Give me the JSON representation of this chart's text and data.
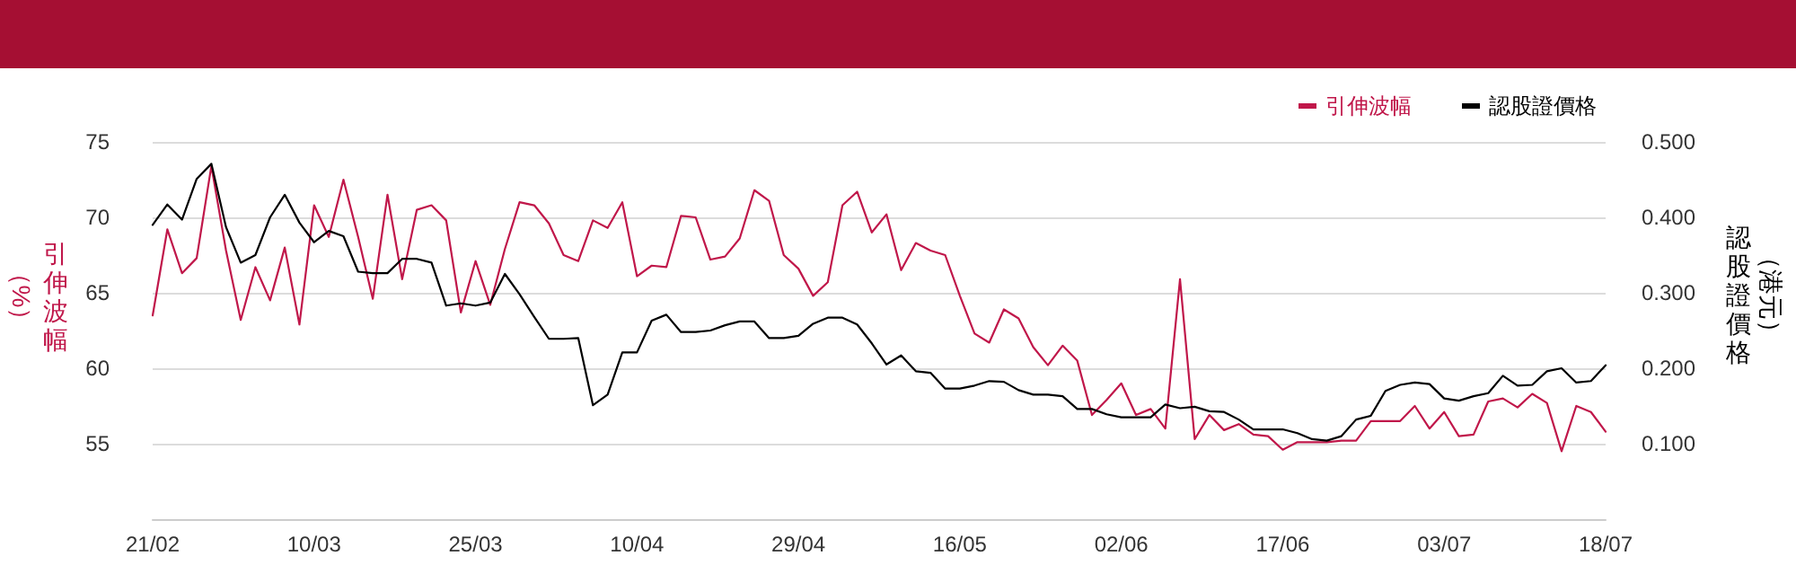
{
  "chart_data": {
    "type": "line",
    "ylabel": "引伸波幅（%）",
    "y2label": "認股證價格（港元）",
    "categories": [
      "21/02",
      null,
      null,
      null,
      null,
      null,
      null,
      null,
      null,
      null,
      null,
      "10/03",
      null,
      null,
      null,
      null,
      null,
      null,
      null,
      null,
      null,
      null,
      "25/03",
      null,
      null,
      null,
      null,
      null,
      null,
      null,
      null,
      null,
      null,
      "10/04",
      null,
      null,
      null,
      null,
      null,
      null,
      null,
      null,
      null,
      null,
      "29/04",
      null,
      null,
      null,
      null,
      null,
      null,
      null,
      null,
      null,
      null,
      "16/05",
      null,
      null,
      null,
      null,
      null,
      null,
      null,
      null,
      null,
      null,
      "02/06",
      null,
      null,
      null,
      null,
      null,
      null,
      null,
      null,
      null,
      null,
      "17/06",
      null,
      null,
      null,
      null,
      null,
      null,
      null,
      null,
      null,
      null,
      "03/07",
      null,
      null,
      null,
      null,
      null,
      null,
      null,
      null,
      null,
      null,
      "18/07"
    ],
    "series": [
      {
        "name": "引伸波幅",
        "color": "#c0174a",
        "values": [
          63.5,
          69.2,
          66.3,
          67.3,
          73.4,
          67.8,
          63.2,
          66.7,
          64.5,
          68.0,
          62.9,
          70.8,
          68.7,
          72.5,
          68.7,
          64.6,
          71.5,
          65.9,
          70.5,
          70.8,
          69.8,
          63.7,
          67.1,
          64.2,
          67.9,
          71.0,
          70.8,
          69.6,
          67.5,
          67.1,
          69.8,
          69.3,
          71.0,
          66.1,
          66.8,
          66.7,
          70.1,
          70.0,
          67.2,
          67.4,
          68.6,
          71.8,
          71.1,
          67.5,
          66.6,
          64.8,
          65.7,
          70.8,
          71.7,
          69.0,
          70.2,
          66.5,
          68.3,
          67.8,
          67.5,
          64.8,
          62.3,
          61.7,
          63.9,
          63.3,
          61.4,
          60.2,
          61.5,
          60.5,
          56.9,
          57.9,
          59.0,
          56.9,
          57.3,
          56.0,
          65.9,
          55.3,
          56.9,
          55.9,
          56.3,
          55.6,
          55.5,
          54.6,
          55.1,
          55.1,
          55.1,
          55.2,
          55.2,
          56.5,
          56.5,
          56.5,
          57.5,
          56.0,
          57.1,
          55.5,
          55.6,
          57.8,
          58.0,
          57.4,
          58.3,
          57.7,
          54.5,
          57.5,
          57.1,
          55.8
        ]
      },
      {
        "name": "認股證價格",
        "color": "#000000",
        "axis": "y2",
        "values": [
          0.39,
          0.417,
          0.397,
          0.451,
          0.471,
          0.387,
          0.34,
          0.35,
          0.4,
          0.43,
          0.393,
          0.367,
          0.382,
          0.375,
          0.328,
          0.326,
          0.326,
          0.345,
          0.345,
          0.34,
          0.283,
          0.286,
          0.283,
          0.287,
          0.325,
          0.298,
          0.268,
          0.239,
          0.239,
          0.24,
          0.151,
          0.165,
          0.221,
          0.221,
          0.263,
          0.271,
          0.248,
          0.248,
          0.25,
          0.257,
          0.262,
          0.262,
          0.24,
          0.24,
          0.243,
          0.259,
          0.267,
          0.267,
          0.258,
          0.233,
          0.205,
          0.217,
          0.196,
          0.194,
          0.173,
          0.173,
          0.177,
          0.183,
          0.182,
          0.171,
          0.165,
          0.165,
          0.163,
          0.146,
          0.146,
          0.139,
          0.135,
          0.135,
          0.135,
          0.152,
          0.147,
          0.149,
          0.143,
          0.142,
          0.132,
          0.119,
          0.119,
          0.119,
          0.114,
          0.106,
          0.104,
          0.11,
          0.132,
          0.137,
          0.17,
          0.178,
          0.181,
          0.179,
          0.16,
          0.157,
          0.163,
          0.167,
          0.19,
          0.177,
          0.178,
          0.196,
          0.2,
          0.181,
          0.183,
          0.204
        ]
      }
    ],
    "ylim": [
      50,
      75
    ],
    "yticks": [
      55,
      60,
      65,
      70,
      75
    ],
    "y2lim": [
      0,
      0.5
    ],
    "y2ticks": [
      {
        "value": 0.1,
        "label": "0.100"
      },
      {
        "value": 0.2,
        "label": "0.200"
      },
      {
        "value": 0.3,
        "label": "0.300"
      },
      {
        "value": 0.4,
        "label": "0.400"
      },
      {
        "value": 0.5,
        "label": "0.500"
      }
    ],
    "grid": "y",
    "legend": "top right",
    "marker": "none",
    "line_style": "solid"
  }
}
